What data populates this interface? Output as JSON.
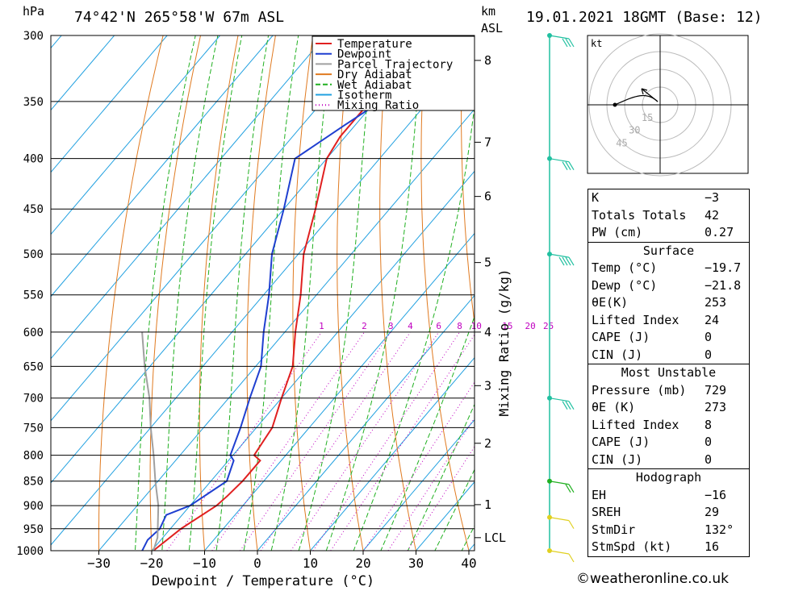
{
  "header": {
    "location": "74°42'N  265°58'W  67m  ASL",
    "datetime": "19.01.2021  18GMT  (Base: 12)",
    "hpa_label": "hPa",
    "km_label": "km",
    "asl_label": "ASL"
  },
  "copyright": "©weatheronline.co.uk",
  "chart_data": {
    "type": "line",
    "subtype": "skew-T log-P",
    "xlabel": "Dewpoint / Temperature (°C)",
    "ylabel_right": "Mixing Ratio (g/kg)",
    "pressure_levels": [
      300,
      350,
      400,
      450,
      500,
      550,
      600,
      650,
      700,
      750,
      800,
      850,
      900,
      950,
      1000
    ],
    "pressure_labels": [
      "300",
      "350",
      "400",
      "450",
      "500",
      "550",
      "600",
      "650",
      "700",
      "750",
      "800",
      "850",
      "900",
      "950",
      "1000"
    ],
    "x_ticks": [
      -30,
      -20,
      -10,
      0,
      10,
      20,
      30,
      40
    ],
    "x_tick_labels": [
      "−30",
      "−20",
      "−10",
      "0",
      "10",
      "20",
      "30",
      "40"
    ],
    "km_ticks": [
      {
        "label": "8",
        "p": 318
      },
      {
        "label": "7",
        "p": 385
      },
      {
        "label": "6",
        "p": 437
      },
      {
        "label": "5",
        "p": 510
      },
      {
        "label": "4",
        "p": 600
      },
      {
        "label": "3",
        "p": 680
      },
      {
        "label": "2",
        "p": 778
      },
      {
        "label": "1",
        "p": 898
      },
      {
        "label": "LCL",
        "p": 970
      }
    ],
    "mixing_ratio_labels": [
      "1",
      "2",
      "3",
      "4",
      "6",
      "8",
      "10",
      "15",
      "20",
      "25"
    ],
    "legend": [
      "Temperature",
      "Dewpoint",
      "Parcel Trajectory",
      "Dry Adiabat",
      "Wet Adiabat",
      "Isotherm",
      "Mixing Ratio"
    ],
    "legend_position": "top-right",
    "colors": {
      "temperature": "#e02020",
      "dewpoint": "#1f3fd0",
      "parcel": "#a0a0a0",
      "dry_adiabat": "#e07a20",
      "wet_adiabat": "#20b020",
      "isotherm": "#20a0e0",
      "mixing_ratio": "#c000c0",
      "wind": "#20c0a0"
    },
    "series": [
      {
        "name": "Temperature",
        "points": [
          [
            1000,
            -19.7
          ],
          [
            950,
            -18
          ],
          [
            900,
            -15
          ],
          [
            880,
            -14.5
          ],
          [
            850,
            -14
          ],
          [
            810,
            -14
          ],
          [
            800,
            -16
          ],
          [
            750,
            -17
          ],
          [
            700,
            -20
          ],
          [
            650,
            -23
          ],
          [
            600,
            -28
          ],
          [
            550,
            -33
          ],
          [
            500,
            -39
          ],
          [
            450,
            -44
          ],
          [
            400,
            -50
          ],
          [
            380,
            -51
          ],
          [
            350,
            -51
          ],
          [
            330,
            -55
          ],
          [
            310,
            -57
          ],
          [
            300,
            -58
          ]
        ]
      },
      {
        "name": "Dewpoint",
        "points": [
          [
            1000,
            -21.8
          ],
          [
            975,
            -22.5
          ],
          [
            950,
            -22
          ],
          [
            920,
            -23
          ],
          [
            900,
            -20
          ],
          [
            850,
            -17
          ],
          [
            810,
            -19
          ],
          [
            800,
            -20.5
          ],
          [
            750,
            -23
          ],
          [
            700,
            -26
          ],
          [
            650,
            -29
          ],
          [
            600,
            -34
          ],
          [
            550,
            -39
          ],
          [
            500,
            -45
          ],
          [
            450,
            -50
          ],
          [
            400,
            -56
          ],
          [
            370,
            -52
          ],
          [
            350,
            -49
          ],
          [
            330,
            -48
          ],
          [
            312,
            -46
          ],
          [
            300,
            -52
          ]
        ]
      },
      {
        "name": "Parcel Trajectory",
        "points": [
          [
            1000,
            -19.7
          ],
          [
            970,
            -21
          ],
          [
            900,
            -26
          ],
          [
            850,
            -30.5
          ],
          [
            800,
            -35
          ],
          [
            750,
            -40
          ],
          [
            700,
            -45
          ],
          [
            650,
            -51
          ],
          [
            600,
            -57
          ]
        ]
      }
    ],
    "wind_barbs": [
      {
        "p": 300,
        "speed_kt": 25
      },
      {
        "p": 400,
        "speed_kt": 30
      },
      {
        "p": 500,
        "speed_kt": 35
      },
      {
        "p": 700,
        "speed_kt": 25
      },
      {
        "p": 850,
        "speed_kt": 15
      },
      {
        "p": 925,
        "speed_kt": 10
      },
      {
        "p": 1000,
        "speed_kt": 10
      }
    ],
    "hodograph": {
      "unit_label": "kt",
      "ring_labels": [
        "15",
        "30",
        "45"
      ]
    }
  },
  "indices": {
    "rows": [
      {
        "k": "K",
        "v": "−3"
      },
      {
        "k": "Totals Totals",
        "v": "42"
      },
      {
        "k": "PW (cm)",
        "v": "0.27"
      }
    ]
  },
  "surface": {
    "title": "Surface",
    "rows": [
      {
        "k": "Temp (°C)",
        "v": "−19.7"
      },
      {
        "k": "Dewp (°C)",
        "v": "−21.8"
      },
      {
        "k": "θE(K)",
        "v": "253"
      },
      {
        "k": "Lifted Index",
        "v": "24"
      },
      {
        "k": "CAPE (J)",
        "v": "0"
      },
      {
        "k": "CIN (J)",
        "v": "0"
      }
    ]
  },
  "most_unstable": {
    "title": "Most Unstable",
    "rows": [
      {
        "k": "Pressure (mb)",
        "v": "729"
      },
      {
        "k": "θE (K)",
        "v": "273"
      },
      {
        "k": "Lifted Index",
        "v": "8"
      },
      {
        "k": "CAPE (J)",
        "v": "0"
      },
      {
        "k": "CIN (J)",
        "v": "0"
      }
    ]
  },
  "hodograph_table": {
    "title": "Hodograph",
    "rows": [
      {
        "k": "EH",
        "v": "−16"
      },
      {
        "k": "SREH",
        "v": "29"
      },
      {
        "k": "StmDir",
        "v": "132°"
      },
      {
        "k": "StmSpd (kt)",
        "v": "16"
      }
    ]
  }
}
